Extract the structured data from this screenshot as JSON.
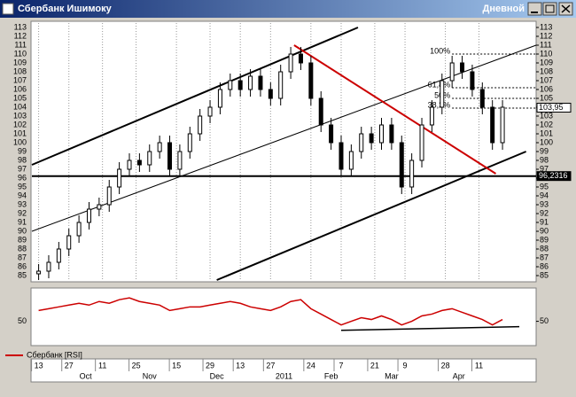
{
  "window": {
    "title": "Сбербанк Ишимоку",
    "mode": "Дневной"
  },
  "chart_data": [
    {
      "type": "candlestick",
      "xlim": [
        0,
        150
      ],
      "ylim": [
        84.5,
        113.5
      ],
      "yticks": [
        85,
        86,
        87,
        88,
        89,
        90,
        91,
        92,
        93,
        94,
        95,
        96,
        97,
        98,
        99,
        100,
        101,
        102,
        103,
        104,
        105,
        106,
        107,
        108,
        109,
        110,
        111,
        112,
        113
      ],
      "xticks": [
        {
          "value": 2,
          "label": "13"
        },
        {
          "value": 11,
          "label": "27"
        },
        {
          "value": 21,
          "label": "11"
        },
        {
          "value": 31,
          "label": "25"
        },
        {
          "value": 43,
          "label": "15"
        },
        {
          "value": 53,
          "label": "29"
        },
        {
          "value": 62,
          "label": "13"
        },
        {
          "value": 71,
          "label": "27"
        },
        {
          "value": 83,
          "label": "24"
        },
        {
          "value": 92,
          "label": "7"
        },
        {
          "value": 102,
          "label": "21"
        },
        {
          "value": 111,
          "label": "9"
        },
        {
          "value": 123,
          "label": "28"
        },
        {
          "value": 133,
          "label": "11"
        }
      ],
      "months": [
        {
          "value": 16,
          "label": "Oct"
        },
        {
          "value": 35,
          "label": "Nov"
        },
        {
          "value": 55,
          "label": "Dec"
        },
        {
          "value": 75,
          "label": "2011"
        },
        {
          "value": 89,
          "label": "Feb"
        },
        {
          "value": 107,
          "label": "Mar"
        },
        {
          "value": 127,
          "label": "Apr"
        }
      ],
      "grid_x": true,
      "x": [
        2,
        5,
        8,
        11,
        14,
        17,
        20,
        23,
        26,
        29,
        32,
        35,
        38,
        41,
        44,
        47,
        50,
        53,
        56,
        59,
        62,
        65,
        68,
        71,
        74,
        77,
        80,
        83,
        86,
        89,
        92,
        95,
        98,
        101,
        104,
        107,
        110,
        113,
        116,
        119,
        122,
        125,
        128,
        131,
        134,
        137,
        140
      ],
      "open": [
        85.2,
        85.5,
        86.5,
        88,
        89.5,
        91,
        92.5,
        93,
        95,
        97,
        98,
        97.5,
        99,
        100,
        97,
        99,
        101,
        103,
        104,
        106,
        107,
        106,
        107.5,
        106,
        105,
        108,
        110,
        109,
        105,
        102,
        100,
        97,
        99,
        101,
        100,
        102,
        100,
        95,
        98,
        102,
        104,
        107,
        109,
        108,
        106,
        104,
        100
      ],
      "high": [
        86.3,
        87.3,
        88.8,
        90.3,
        91.8,
        93.3,
        93.8,
        95.8,
        97.8,
        98.8,
        98.8,
        99.8,
        100.8,
        100.8,
        99.8,
        101.8,
        103.8,
        104.8,
        106.8,
        107.8,
        107.8,
        108.3,
        108.3,
        106.8,
        108.8,
        110.8,
        110.8,
        109.8,
        105.8,
        102.8,
        100.8,
        99.8,
        101.8,
        101.8,
        102.8,
        102.8,
        100.8,
        98.8,
        102.8,
        104.8,
        107.8,
        109.8,
        109.8,
        108.8,
        106.8,
        104.8,
        104.8
      ],
      "low": [
        84.5,
        84.7,
        85.7,
        87.2,
        88.7,
        90.2,
        91.7,
        92.2,
        94.2,
        96.2,
        96.7,
        96.7,
        98.2,
        96.2,
        96.2,
        98.2,
        100.2,
        102.2,
        103.2,
        105.2,
        105.2,
        105.2,
        105.2,
        104.2,
        104.2,
        107.2,
        108.2,
        104.2,
        101.2,
        99.2,
        96.2,
        96.2,
        98.2,
        99.2,
        99.2,
        99.2,
        94.2,
        94.2,
        97.2,
        101.2,
        103.2,
        106.2,
        107.2,
        105.2,
        103.2,
        99.2,
        99.2
      ],
      "close": [
        85.5,
        86.5,
        88,
        89.5,
        91,
        92.5,
        93,
        95,
        97,
        98,
        97.5,
        99,
        100,
        97,
        99,
        101,
        103,
        104,
        106,
        107,
        106,
        107.5,
        106,
        105,
        108,
        110,
        109,
        105,
        102,
        100,
        97,
        99,
        101,
        100,
        102,
        100,
        95,
        98,
        102,
        104,
        107,
        109,
        108,
        106,
        104,
        100,
        104
      ],
      "trendlines": [
        {
          "color": "#000000",
          "x": [
            0,
            97
          ],
          "y": [
            97.5,
            113
          ]
        },
        {
          "color": "#000000",
          "x": [
            0,
            150
          ],
          "y": [
            90,
            111
          ]
        },
        {
          "color": "#000000",
          "x": [
            55,
            147
          ],
          "y": [
            84.5,
            99
          ]
        },
        {
          "color": "#cc0000",
          "x": [
            78,
            138
          ],
          "y": [
            111,
            96.5
          ]
        },
        {
          "color": "#000000",
          "x": [
            0,
            150
          ],
          "y": [
            96.23,
            96.23
          ]
        }
      ],
      "fib_levels": [
        {
          "value": 110,
          "label": "100%"
        },
        {
          "value": 106.2,
          "label": "61,8%"
        },
        {
          "value": 105,
          "label": "50%"
        },
        {
          "value": 103.9,
          "label": "38,2%"
        }
      ],
      "price_labels": [
        {
          "value": 103.95,
          "label": "103,95"
        },
        {
          "value": 96.2316,
          "label": "96,2316"
        }
      ]
    },
    {
      "type": "line",
      "ylim": [
        25,
        85
      ],
      "yticks": [
        50
      ],
      "series": [
        {
          "name": "Сбербанк [RSI]",
          "color": "#cc0000",
          "values": [
            62,
            64,
            66,
            68,
            70,
            68,
            72,
            70,
            74,
            76,
            72,
            70,
            68,
            62,
            64,
            66,
            66,
            68,
            70,
            72,
            70,
            66,
            64,
            62,
            66,
            72,
            74,
            64,
            58,
            52,
            46,
            50,
            54,
            52,
            56,
            52,
            46,
            50,
            56,
            58,
            62,
            64,
            60,
            56,
            52,
            46,
            52
          ]
        }
      ],
      "trendlines": [
        {
          "color": "#000000",
          "x": [
            92,
            145
          ],
          "y": [
            40,
            44
          ]
        }
      ]
    }
  ]
}
